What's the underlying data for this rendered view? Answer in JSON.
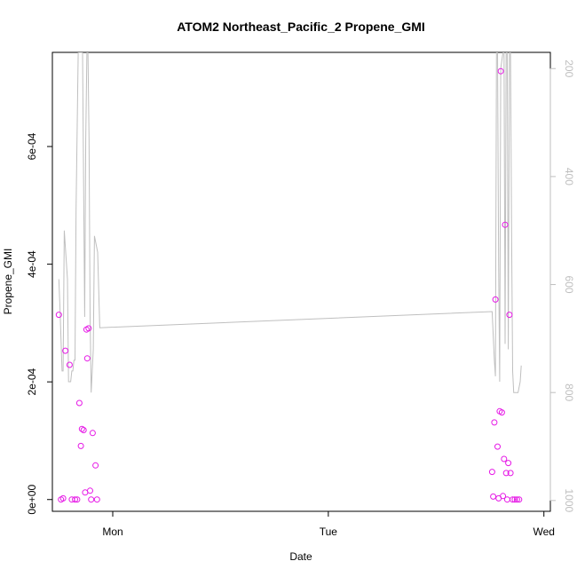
{
  "chart_data": {
    "type": "scatter",
    "title": "ATOM2 Northeast_Pacific_2 Propene_GMI",
    "xlabel": "Date",
    "ylabel": "Propene_GMI",
    "x_ticks": [
      "Mon",
      "Tue",
      "Wed"
    ],
    "y_ticks": [
      "0e+00",
      "2e-04",
      "4e-04",
      "6e-04"
    ],
    "right_ticks": [
      "200",
      "400",
      "600",
      "800",
      "1000"
    ],
    "xlim_days": [
      -0.28,
      2.03
    ],
    "ylim": [
      -2e-05,
      0.00076
    ],
    "right_axis": {
      "label": "",
      "reversed": true,
      "ylim": [
        1020,
        170
      ]
    },
    "colors": {
      "points": "#e619e6",
      "line": "#bfbfbf",
      "right_axis": "#bfbfbf"
    },
    "series": [
      {
        "kind": "points",
        "points": [
          [
            -0.25,
            0.000314
          ],
          [
            -0.24,
            0.0
          ],
          [
            -0.23,
            2e-06
          ],
          [
            -0.22,
            0.000253
          ],
          [
            -0.2,
            0.000229
          ],
          [
            -0.19,
            0.0
          ],
          [
            -0.175,
            0.0
          ],
          [
            -0.165,
            0.0
          ],
          [
            -0.155,
            0.000164
          ],
          [
            -0.148,
            9.1e-05
          ],
          [
            -0.143,
            0.00012
          ],
          [
            -0.135,
            0.000118
          ],
          [
            -0.128,
            1.2e-05
          ],
          [
            -0.122,
            0.000289
          ],
          [
            -0.118,
            0.00024
          ],
          [
            -0.112,
            0.000291
          ],
          [
            -0.105,
            1.5e-05
          ],
          [
            -0.1,
            0.0
          ],
          [
            -0.093,
            0.000113
          ],
          [
            -0.08,
            5.8e-05
          ],
          [
            -0.073,
            0.0
          ],
          [
            1.76,
            4.7e-05
          ],
          [
            1.765,
            5e-06
          ],
          [
            1.77,
            0.000131
          ],
          [
            1.775,
            0.00034
          ],
          [
            1.785,
            9e-05
          ],
          [
            1.79,
            2e-06
          ],
          [
            1.795,
            0.00015
          ],
          [
            1.8,
            0.000728
          ],
          [
            1.805,
            0.000148
          ],
          [
            1.81,
            6e-06
          ],
          [
            1.815,
            6.9e-05
          ],
          [
            1.82,
            0.000467
          ],
          [
            1.825,
            4.5e-05
          ],
          [
            1.83,
            0.0
          ],
          [
            1.835,
            6.2e-05
          ],
          [
            1.84,
            0.000314
          ],
          [
            1.845,
            4.5e-05
          ],
          [
            1.855,
            0.0
          ],
          [
            1.865,
            0.0
          ],
          [
            1.875,
            0.0
          ],
          [
            1.885,
            0.0
          ]
        ]
      },
      {
        "kind": "line",
        "axis": "right",
        "points": [
          [
            -0.25,
            590
          ],
          [
            -0.245,
            640
          ],
          [
            -0.24,
            700
          ],
          [
            -0.235,
            760
          ],
          [
            -0.23,
            760
          ],
          [
            -0.225,
            500
          ],
          [
            -0.215,
            560
          ],
          [
            -0.21,
            590
          ],
          [
            -0.205,
            780
          ],
          [
            -0.195,
            780
          ],
          [
            -0.19,
            760
          ],
          [
            -0.185,
            760
          ],
          [
            -0.18,
            740
          ],
          [
            -0.175,
            740
          ],
          [
            -0.17,
            460
          ],
          [
            -0.16,
            170
          ],
          [
            -0.155,
            170
          ],
          [
            -0.15,
            170
          ],
          [
            -0.145,
            170
          ],
          [
            -0.14,
            170
          ],
          [
            -0.13,
            660
          ],
          [
            -0.125,
            330
          ],
          [
            -0.12,
            170
          ],
          [
            -0.115,
            170
          ],
          [
            -0.11,
            330
          ],
          [
            -0.105,
            660
          ],
          [
            -0.1,
            800
          ],
          [
            -0.095,
            760
          ],
          [
            -0.09,
            720
          ],
          [
            -0.085,
            510
          ],
          [
            -0.08,
            520
          ],
          [
            -0.075,
            530
          ],
          [
            -0.07,
            540
          ],
          [
            -0.06,
            680
          ],
          [
            1.76,
            650
          ],
          [
            1.77,
            740
          ],
          [
            1.775,
            770
          ],
          [
            1.78,
            170
          ],
          [
            1.785,
            170
          ],
          [
            1.79,
            560
          ],
          [
            1.795,
            780
          ],
          [
            1.8,
            200
          ],
          [
            1.81,
            170
          ],
          [
            1.815,
            170
          ],
          [
            1.82,
            710
          ],
          [
            1.825,
            170
          ],
          [
            1.83,
            170
          ],
          [
            1.835,
            720
          ],
          [
            1.84,
            170
          ],
          [
            1.845,
            170
          ],
          [
            1.85,
            500
          ],
          [
            1.855,
            760
          ],
          [
            1.86,
            800
          ],
          [
            1.87,
            800
          ],
          [
            1.88,
            800
          ],
          [
            1.89,
            780
          ],
          [
            1.895,
            750
          ]
        ]
      }
    ]
  }
}
